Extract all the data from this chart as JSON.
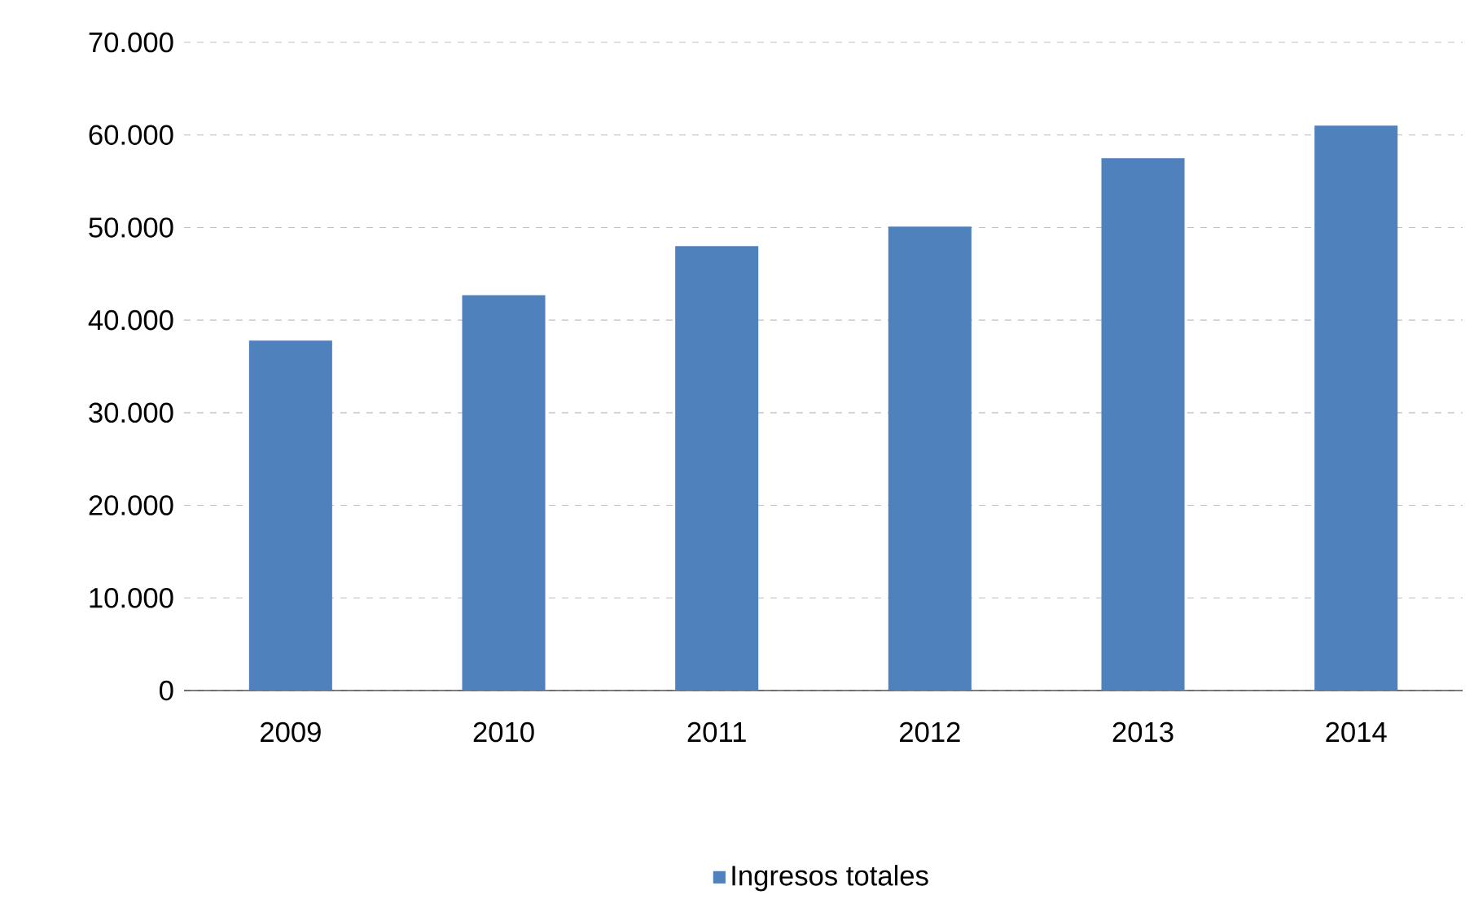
{
  "chart_data": {
    "type": "bar",
    "categories": [
      "2009",
      "2010",
      "2011",
      "2012",
      "2013",
      "2014"
    ],
    "series": [
      {
        "name": "Ingresos totales",
        "color": "#4f81bd",
        "values": [
          37800,
          42700,
          48000,
          50100,
          57500,
          61000
        ]
      }
    ],
    "ylim": [
      0,
      70000
    ],
    "yticks": [
      {
        "value": 0,
        "label": "0"
      },
      {
        "value": 10000,
        "label": "10.000"
      },
      {
        "value": 20000,
        "label": "20.000"
      },
      {
        "value": 30000,
        "label": "30.000"
      },
      {
        "value": 40000,
        "label": "40.000"
      },
      {
        "value": 50000,
        "label": "50.000"
      },
      {
        "value": 60000,
        "label": "60.000"
      },
      {
        "value": 70000,
        "label": "70.000"
      }
    ],
    "grid": "y",
    "legend": "bottom"
  }
}
